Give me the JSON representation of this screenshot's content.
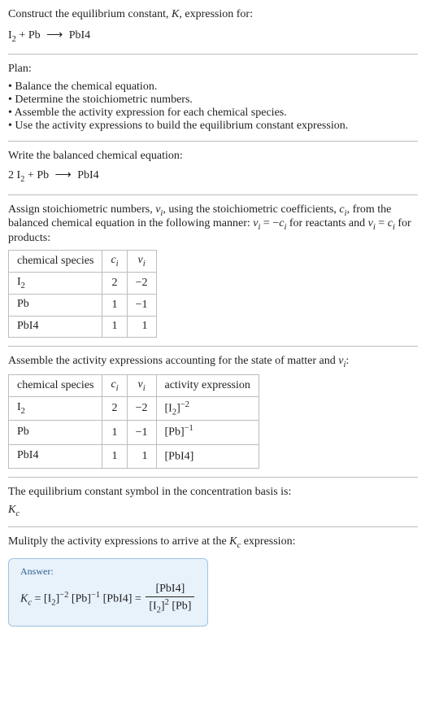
{
  "header": {
    "line1": "Construct the equilibrium constant, ",
    "K": "K",
    "line1b": ", expression for:",
    "equation_left": "I",
    "equation_left_sub": "2",
    "plus": " + Pb ",
    "arrow": "⟶",
    "equation_right": " PbI4"
  },
  "plan": {
    "title": "Plan:",
    "items": [
      "Balance the chemical equation.",
      "Determine the stoichiometric numbers.",
      "Assemble the activity expression for each chemical species.",
      "Use the activity expressions to build the equilibrium constant expression."
    ]
  },
  "balanced": {
    "title": "Write the balanced chemical equation:",
    "prefix": "2 I",
    "sub": "2",
    "mid": " + Pb ",
    "arrow": "⟶",
    "right": " PbI4"
  },
  "assign": {
    "text_a": "Assign stoichiometric numbers, ",
    "nu": "ν",
    "nu_sub": "i",
    "text_b": ", using the stoichiometric coefficients, ",
    "c": "c",
    "c_sub": "i",
    "text_c": ", from the balanced chemical equation in the following manner: ",
    "rel1_l": "ν",
    "rel1_lsub": "i",
    "rel1_eq": " = −",
    "rel1_r": "c",
    "rel1_rsub": "i",
    "text_d": " for reactants and ",
    "rel2_l": "ν",
    "rel2_lsub": "i",
    "rel2_eq": " = ",
    "rel2_r": "c",
    "rel2_rsub": "i",
    "text_e": " for products:"
  },
  "table1": {
    "headers": {
      "species": "chemical species",
      "c": "c",
      "csub": "i",
      "nu": "ν",
      "nusub": "i"
    },
    "rows": [
      {
        "species_a": "I",
        "species_sub": "2",
        "c": "2",
        "nu": "−2"
      },
      {
        "species_a": "Pb",
        "species_sub": "",
        "c": "1",
        "nu": "−1"
      },
      {
        "species_a": "PbI4",
        "species_sub": "",
        "c": "1",
        "nu": "1"
      }
    ]
  },
  "assemble": {
    "text_a": "Assemble the activity expressions accounting for the state of matter and ",
    "nu": "ν",
    "nusub": "i",
    "text_b": ":"
  },
  "table2": {
    "headers": {
      "species": "chemical species",
      "c": "c",
      "csub": "i",
      "nu": "ν",
      "nusub": "i",
      "act": "activity expression"
    },
    "rows": [
      {
        "species_a": "I",
        "species_sub": "2",
        "c": "2",
        "nu": "−2",
        "act_a": "[I",
        "act_sub": "2",
        "act_b": "]",
        "act_sup": "−2"
      },
      {
        "species_a": "Pb",
        "species_sub": "",
        "c": "1",
        "nu": "−1",
        "act_a": "[Pb]",
        "act_sub": "",
        "act_b": "",
        "act_sup": "−1"
      },
      {
        "species_a": "PbI4",
        "species_sub": "",
        "c": "1",
        "nu": "1",
        "act_a": "[PbI4]",
        "act_sub": "",
        "act_b": "",
        "act_sup": ""
      }
    ]
  },
  "symbol": {
    "text": "The equilibrium constant symbol in the concentration basis is:",
    "K": "K",
    "Ksub": "c"
  },
  "multiply": {
    "text_a": "Mulitply the activity expressions to arrive at the ",
    "K": "K",
    "Ksub": "c",
    "text_b": " expression:"
  },
  "answer": {
    "label": "Answer:",
    "K": "K",
    "Ksub": "c",
    "eq": " = [I",
    "p1_sub": "2",
    "p1_b": "]",
    "p1_sup": "−2",
    "p2": " [Pb]",
    "p2_sup": "−1",
    "p3": " [PbI4] = ",
    "frac_num": "[PbI4]",
    "frac_den_a": "[I",
    "frac_den_sub": "2",
    "frac_den_b": "]",
    "frac_den_sup": "2",
    "frac_den_c": " [Pb]"
  }
}
